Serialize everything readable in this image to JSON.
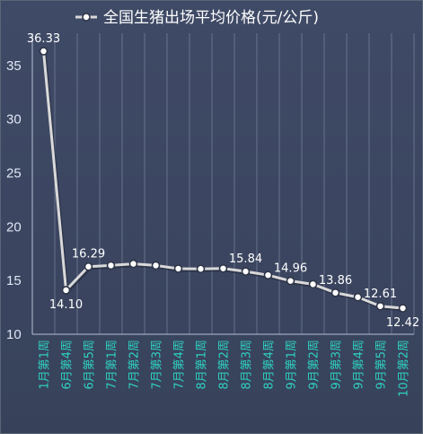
{
  "chart_data": {
    "type": "line",
    "title": "全国生猪出场平均价格(元/公斤)",
    "categories": [
      "1月第1周",
      "6月第4周",
      "6月第5周",
      "7月第1周",
      "7月第2周",
      "7月第3周",
      "7月第4周",
      "8月第1周",
      "8月第2周",
      "8月第3周",
      "8月第4周",
      "9月第1周",
      "9月第2周",
      "9月第3周",
      "9月第4周",
      "9月第5周",
      "10月第2周"
    ],
    "series": [
      {
        "name": "全国生猪出场平均价格(元/公斤)",
        "values": [
          36.33,
          14.1,
          16.29,
          16.4,
          16.55,
          16.4,
          16.1,
          16.08,
          16.12,
          15.84,
          15.5,
          14.96,
          14.65,
          13.86,
          13.45,
          12.61,
          12.42
        ],
        "color": "#d9d9d9"
      }
    ],
    "data_labels": [
      {
        "index": 0,
        "text": "36.33",
        "position": "above"
      },
      {
        "index": 1,
        "text": "14.10",
        "position": "below"
      },
      {
        "index": 2,
        "text": "16.29",
        "position": "above"
      },
      {
        "index": 9,
        "text": "15.84",
        "position": "above"
      },
      {
        "index": 11,
        "text": "14.96",
        "position": "above"
      },
      {
        "index": 13,
        "text": "13.86",
        "position": "above"
      },
      {
        "index": 15,
        "text": "12.61",
        "position": "above"
      },
      {
        "index": 16,
        "text": "12.42",
        "position": "below"
      }
    ],
    "yticks": [
      10,
      15,
      20,
      25,
      30,
      35
    ],
    "ylim": [
      10,
      38
    ],
    "grid": true,
    "legend_position": "top"
  },
  "colors": {
    "background": "#3e4864",
    "line": "#d9d9d9",
    "tick_x": "#2fd0c0",
    "tick_y": "#dfe6f4"
  }
}
